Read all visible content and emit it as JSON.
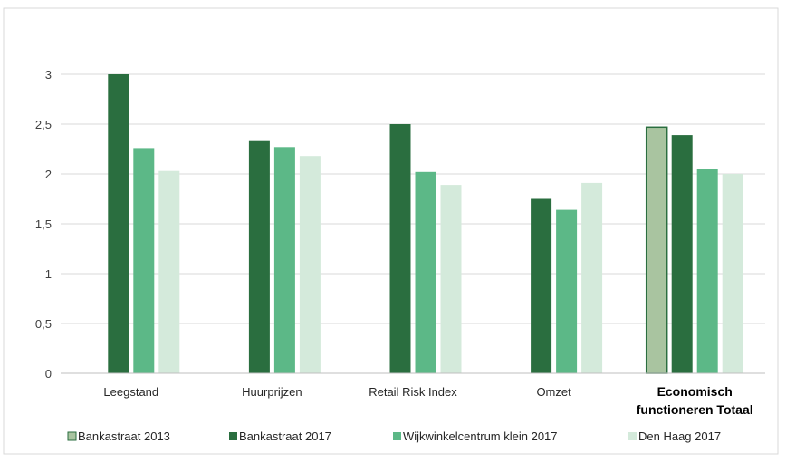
{
  "chart_data": {
    "type": "bar",
    "categories": [
      "Leegstand",
      "Huurprijzen",
      "Retail Risk Index",
      "Omzet",
      "Economisch functioneren Totaal"
    ],
    "category_label_lines": [
      [
        "Leegstand"
      ],
      [
        "Huurprijzen"
      ],
      [
        "Retail Risk Index"
      ],
      [
        "Omzet"
      ],
      [
        "Economisch",
        "functioneren Totaal"
      ]
    ],
    "bold_category": 4,
    "series": [
      {
        "name": "Bankastraat 2013",
        "color": "#a9c4a0",
        "values": [
          null,
          null,
          null,
          null,
          2.47
        ]
      },
      {
        "name": "Bankastraat 2017",
        "color": "#2a6e3f",
        "values": [
          3.0,
          2.33,
          2.5,
          1.75,
          2.39
        ]
      },
      {
        "name": "Wijkwinkelcentrum klein 2017",
        "color": "#5cb887",
        "values": [
          2.26,
          2.27,
          2.02,
          1.64,
          2.05
        ]
      },
      {
        "name": "Den Haag 2017",
        "color": "#d4eadb",
        "values": [
          2.03,
          2.18,
          1.89,
          1.91,
          2.0
        ]
      }
    ],
    "yticks": [
      "0",
      "0,5",
      "1",
      "1,5",
      "2",
      "2,5",
      "3"
    ],
    "ylim": [
      0,
      3.5
    ],
    "grid": true,
    "legend_position": "bottom",
    "title": "",
    "xlabel": "",
    "ylabel": ""
  }
}
